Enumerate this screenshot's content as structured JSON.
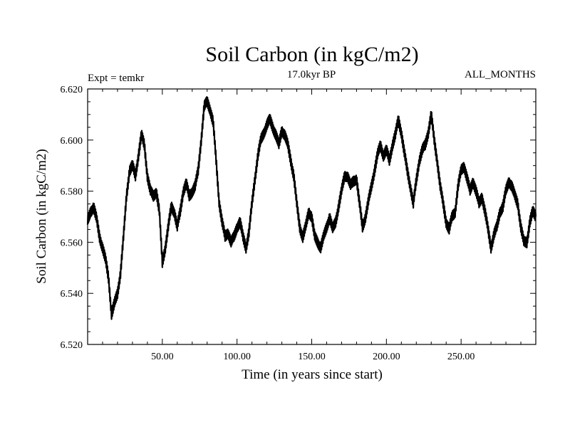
{
  "chart_data": {
    "type": "line",
    "title": "Soil Carbon (in kgC/m2)",
    "subtitle_left": "Expt = temkr",
    "subtitle_center": "17.0kyr BP",
    "subtitle_right": "ALL_MONTHS",
    "xlabel": "Time (in years since start)",
    "ylabel": "Soil Carbon (in kgC/m2)",
    "xlim": [
      0,
      300
    ],
    "ylim": [
      6.52,
      6.62
    ],
    "xticks": [
      50,
      100,
      150,
      200,
      250
    ],
    "xtick_labels": [
      "50.00",
      "100.00",
      "150.00",
      "200.00",
      "250.00"
    ],
    "yticks": [
      6.52,
      6.54,
      6.56,
      6.58,
      6.6,
      6.62
    ],
    "ytick_labels": [
      "6.520",
      "6.540",
      "6.560",
      "6.580",
      "6.600",
      "6.620"
    ],
    "series": [
      {
        "name": "Soil Carbon",
        "color": "#000000",
        "x": [
          0,
          2,
          4,
          6,
          8,
          10,
          12,
          14,
          16,
          18,
          20,
          22,
          24,
          26,
          28,
          30,
          32,
          34,
          36,
          38,
          40,
          42,
          44,
          46,
          48,
          50,
          52,
          54,
          56,
          58,
          60,
          62,
          64,
          66,
          68,
          70,
          72,
          74,
          76,
          78,
          80,
          82,
          84,
          86,
          88,
          90,
          92,
          94,
          96,
          98,
          100,
          102,
          104,
          106,
          108,
          110,
          112,
          114,
          116,
          118,
          120,
          122,
          124,
          126,
          128,
          130,
          132,
          134,
          136,
          138,
          140,
          142,
          144,
          146,
          148,
          150,
          152,
          154,
          156,
          158,
          160,
          162,
          164,
          166,
          168,
          170,
          172,
          174,
          176,
          178,
          180,
          182,
          184,
          186,
          188,
          190,
          192,
          194,
          196,
          198,
          200,
          202,
          204,
          206,
          208,
          210,
          212,
          214,
          216,
          218,
          220,
          222,
          224,
          226,
          228,
          230,
          232,
          234,
          236,
          238,
          240,
          242,
          244,
          246,
          248,
          250,
          252,
          254,
          256,
          258,
          260,
          262,
          264,
          266,
          268,
          270,
          272,
          274,
          276,
          278,
          280,
          282,
          284,
          286,
          288,
          290,
          292,
          294,
          296,
          298,
          300
        ],
        "y": [
          6.568,
          6.572,
          6.574,
          6.569,
          6.562,
          6.558,
          6.553,
          6.546,
          6.532,
          6.536,
          6.54,
          6.548,
          6.562,
          6.578,
          6.588,
          6.59,
          6.586,
          6.594,
          6.602,
          6.598,
          6.586,
          6.58,
          6.578,
          6.58,
          6.572,
          6.552,
          6.558,
          6.566,
          6.574,
          6.572,
          6.566,
          6.572,
          6.58,
          6.583,
          6.578,
          6.58,
          6.582,
          6.588,
          6.6,
          6.613,
          6.615,
          6.612,
          6.607,
          6.592,
          6.576,
          6.568,
          6.562,
          6.564,
          6.56,
          6.562,
          6.566,
          6.568,
          6.562,
          6.558,
          6.564,
          6.575,
          6.585,
          6.594,
          6.6,
          6.603,
          6.606,
          6.608,
          6.605,
          6.602,
          6.598,
          6.604,
          6.602,
          6.598,
          6.592,
          6.586,
          6.575,
          6.566,
          6.562,
          6.566,
          6.572,
          6.57,
          6.562,
          6.56,
          6.558,
          6.562,
          6.566,
          6.57,
          6.565,
          6.568,
          6.574,
          6.58,
          6.586,
          6.586,
          6.582,
          6.584,
          6.585,
          6.575,
          6.566,
          6.57,
          6.576,
          6.582,
          6.588,
          6.594,
          6.598,
          6.594,
          6.596,
          6.592,
          6.598,
          6.602,
          6.608,
          6.603,
          6.595,
          6.588,
          6.582,
          6.575,
          6.584,
          6.592,
          6.596,
          6.598,
          6.603,
          6.61,
          6.6,
          6.592,
          6.582,
          6.575,
          6.568,
          6.565,
          6.57,
          6.572,
          6.582,
          6.588,
          6.59,
          6.585,
          6.58,
          6.584,
          6.58,
          6.575,
          6.578,
          6.572,
          6.565,
          6.558,
          6.563,
          6.566,
          6.572,
          6.574,
          6.58,
          6.584,
          6.582,
          6.578,
          6.575,
          6.566,
          6.56,
          6.56,
          6.568,
          6.572,
          6.57
        ]
      }
    ]
  }
}
